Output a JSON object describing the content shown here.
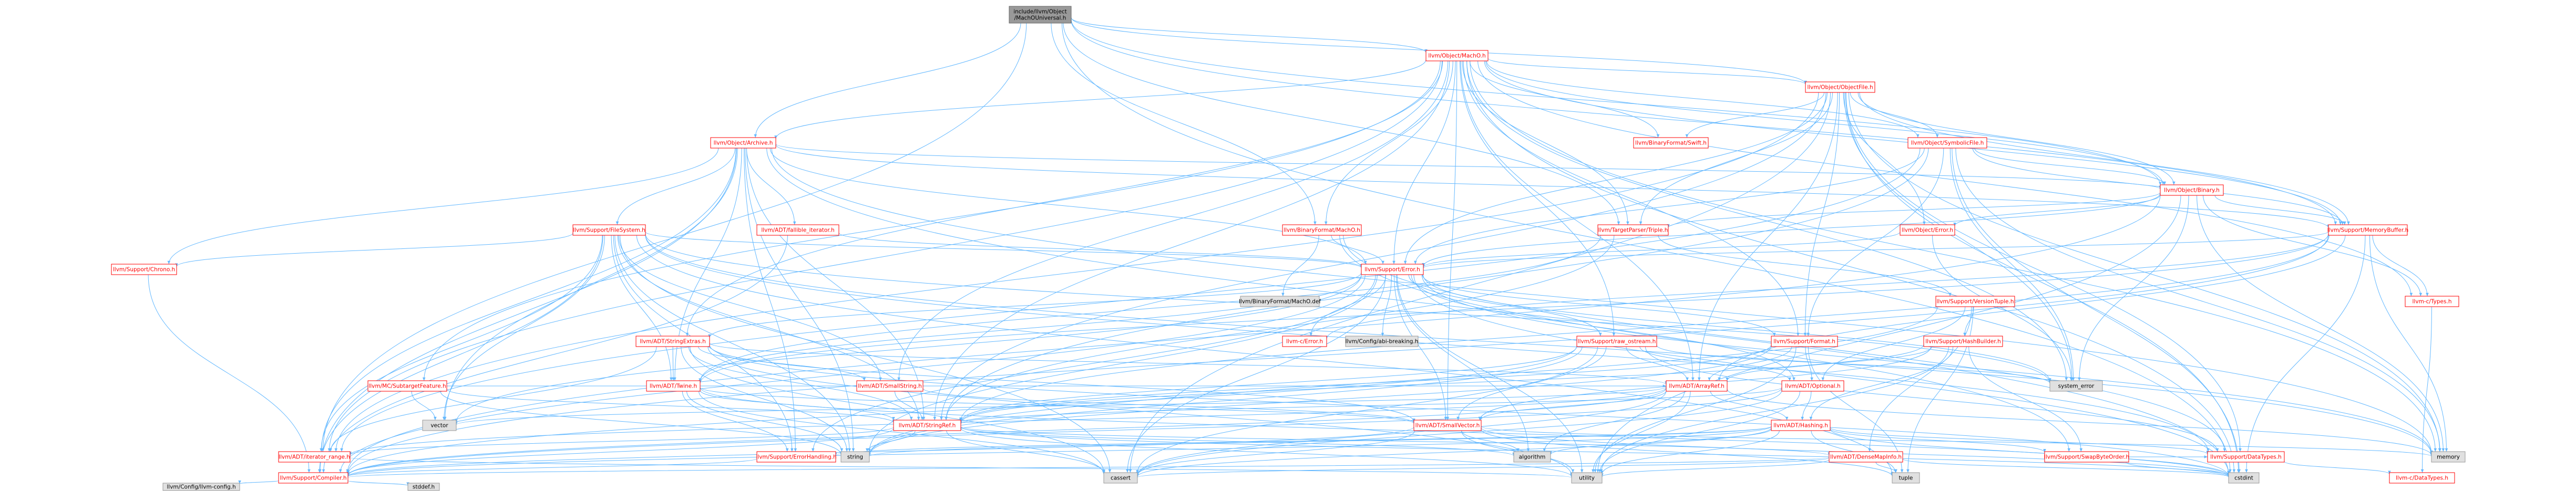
{
  "title": "include/llvm/Object/MachOUniversal.h",
  "colors": {
    "edge": "#63b8ff",
    "root_fill": "#999999",
    "linked_fill": "#ffffff",
    "linked_border": "#ff0000",
    "leaf_fill": "#e0e0e0",
    "leaf_border": "#999999",
    "text": "#000000",
    "red_text": "#ff0000"
  },
  "nodes": [
    {
      "id": "root",
      "kind": "root",
      "lines": [
        "include/llvm/Object",
        "/MachOUniversal.h"
      ]
    },
    {
      "id": "machO",
      "kind": "linked",
      "lines": [
        "llvm/Object/MachO.h"
      ]
    },
    {
      "id": "objectFile",
      "kind": "linked",
      "lines": [
        "llvm/Object/ObjectFile.h"
      ]
    },
    {
      "id": "archive",
      "kind": "linked",
      "lines": [
        "llvm/Object/Archive.h"
      ]
    },
    {
      "id": "swiftBF",
      "kind": "linked",
      "lines": [
        "llvm/BinaryFormat/Swift.h"
      ]
    },
    {
      "id": "symbolicFile",
      "kind": "linked",
      "lines": [
        "llvm/Object/SymbolicFile.h"
      ]
    },
    {
      "id": "binary",
      "kind": "linked",
      "lines": [
        "llvm/Object/Binary.h"
      ]
    },
    {
      "id": "fileSystem",
      "kind": "linked",
      "lines": [
        "llvm/Support/FileSystem.h"
      ]
    },
    {
      "id": "fallible",
      "kind": "linked",
      "lines": [
        "llvm/ADT/fallible_iterator.h"
      ]
    },
    {
      "id": "binMachO",
      "kind": "linked",
      "lines": [
        "llvm/BinaryFormat/MachO.h"
      ]
    },
    {
      "id": "triple",
      "kind": "linked",
      "lines": [
        "llvm/TargetParser/Triple.h"
      ]
    },
    {
      "id": "objError",
      "kind": "linked",
      "lines": [
        "llvm/Object/Error.h"
      ]
    },
    {
      "id": "memBuffer",
      "kind": "linked",
      "lines": [
        "llvm/Support/MemoryBuffer.h"
      ]
    },
    {
      "id": "chrono",
      "kind": "linked",
      "lines": [
        "llvm/Support/Chrono.h"
      ]
    },
    {
      "id": "supError",
      "kind": "linked",
      "lines": [
        "llvm/Support/Error.h"
      ]
    },
    {
      "id": "machoDef",
      "kind": "leaf",
      "lines": [
        "llvm/BinaryFormat/MachO.def"
      ]
    },
    {
      "id": "versionTuple",
      "kind": "linked",
      "lines": [
        "llvm/Support/VersionTuple.h"
      ]
    },
    {
      "id": "ctypes",
      "kind": "linked",
      "lines": [
        "llvm-c/Types.h"
      ]
    },
    {
      "id": "cError",
      "kind": "linked",
      "lines": [
        "llvm-c/Error.h"
      ]
    },
    {
      "id": "abiBreaking",
      "kind": "leaf",
      "lines": [
        "llvm/Config/abi-breaking.h"
      ]
    },
    {
      "id": "stringExtras",
      "kind": "linked",
      "lines": [
        "llvm/ADT/StringExtras.h"
      ]
    },
    {
      "id": "rawOstream",
      "kind": "linked",
      "lines": [
        "llvm/Support/raw_ostream.h"
      ]
    },
    {
      "id": "format",
      "kind": "linked",
      "lines": [
        "llvm/Support/Format.h"
      ]
    },
    {
      "id": "hashBuilder",
      "kind": "linked",
      "lines": [
        "llvm/Support/HashBuilder.h"
      ]
    },
    {
      "id": "subtarget",
      "kind": "linked",
      "lines": [
        "llvm/MC/SubtargetFeature.h"
      ]
    },
    {
      "id": "twine",
      "kind": "linked",
      "lines": [
        "llvm/ADT/Twine.h"
      ]
    },
    {
      "id": "smallString",
      "kind": "linked",
      "lines": [
        "llvm/ADT/SmallString.h"
      ]
    },
    {
      "id": "arrayRef",
      "kind": "linked",
      "lines": [
        "llvm/ADT/ArrayRef.h"
      ]
    },
    {
      "id": "optional",
      "kind": "linked",
      "lines": [
        "llvm/ADT/Optional.h"
      ]
    },
    {
      "id": "systemError",
      "kind": "leaf",
      "lines": [
        "system_error"
      ]
    },
    {
      "id": "vector",
      "kind": "leaf",
      "lines": [
        "vector"
      ]
    },
    {
      "id": "stringRef",
      "kind": "linked",
      "lines": [
        "llvm/ADT/StringRef.h"
      ]
    },
    {
      "id": "smallVector",
      "kind": "linked",
      "lines": [
        "llvm/ADT/SmallVector.h"
      ]
    },
    {
      "id": "hashing",
      "kind": "linked",
      "lines": [
        "llvm/ADT/Hashing.h"
      ]
    },
    {
      "id": "iterRange",
      "kind": "linked",
      "lines": [
        "llvm/ADT/iterator_range.h"
      ]
    },
    {
      "id": "errHandling",
      "kind": "linked",
      "lines": [
        "llvm/Support/ErrorHandling.h"
      ]
    },
    {
      "id": "string",
      "kind": "leaf",
      "lines": [
        "string"
      ]
    },
    {
      "id": "algorithm",
      "kind": "leaf",
      "lines": [
        "algorithm"
      ]
    },
    {
      "id": "denseMapInfo",
      "kind": "linked",
      "lines": [
        "llvm/ADT/DenseMapInfo.h"
      ]
    },
    {
      "id": "swapByte",
      "kind": "linked",
      "lines": [
        "llvm/Support/SwapByteOrder.h"
      ]
    },
    {
      "id": "dataTypesSup",
      "kind": "linked",
      "lines": [
        "llvm/Support/DataTypes.h"
      ]
    },
    {
      "id": "memory",
      "kind": "leaf",
      "lines": [
        "memory"
      ]
    },
    {
      "id": "compiler",
      "kind": "linked",
      "lines": [
        "llvm/Support/Compiler.h"
      ]
    },
    {
      "id": "cassert",
      "kind": "leaf",
      "lines": [
        "cassert"
      ]
    },
    {
      "id": "utility",
      "kind": "leaf",
      "lines": [
        "utility"
      ]
    },
    {
      "id": "tuple",
      "kind": "leaf",
      "lines": [
        "tuple"
      ]
    },
    {
      "id": "cstdint",
      "kind": "leaf",
      "lines": [
        "cstdint"
      ]
    },
    {
      "id": "cDataTypes",
      "kind": "linked",
      "lines": [
        "llvm-c/DataTypes.h"
      ]
    },
    {
      "id": "llvmConfig",
      "kind": "leaf",
      "lines": [
        "llvm/Config/llvm-config.h"
      ]
    },
    {
      "id": "stddef",
      "kind": "leaf",
      "lines": [
        "stddef.h"
      ]
    }
  ],
  "edges": [
    [
      "root",
      "machO"
    ],
    [
      "root",
      "objectFile"
    ],
    [
      "root",
      "archive"
    ],
    [
      "root",
      "binary"
    ],
    [
      "root",
      "triple"
    ],
    [
      "root",
      "binMachO"
    ],
    [
      "root",
      "iterRange"
    ],
    [
      "root",
      "memBuffer"
    ],
    [
      "root",
      "cstdint"
    ],
    [
      "machO",
      "objectFile"
    ],
    [
      "machO",
      "archive"
    ],
    [
      "machO",
      "swiftBF"
    ],
    [
      "machO",
      "symbolicFile"
    ],
    [
      "machO",
      "binary"
    ],
    [
      "machO",
      "binMachO"
    ],
    [
      "machO",
      "triple"
    ],
    [
      "machO",
      "supError"
    ],
    [
      "machO",
      "arrayRef"
    ],
    [
      "machO",
      "smallString"
    ],
    [
      "machO",
      "smallVector"
    ],
    [
      "machO",
      "stringExtras"
    ],
    [
      "machO",
      "stringRef"
    ],
    [
      "machO",
      "subtarget"
    ],
    [
      "machO",
      "format"
    ],
    [
      "machO",
      "memBuffer"
    ],
    [
      "machO",
      "rawOstream"
    ],
    [
      "machO",
      "systemError"
    ],
    [
      "machO",
      "memory"
    ],
    [
      "machO",
      "cstdint"
    ],
    [
      "machO",
      "ctypes"
    ],
    [
      "machO",
      "iterRange"
    ],
    [
      "objectFile",
      "symbolicFile"
    ],
    [
      "objectFile",
      "binary"
    ],
    [
      "objectFile",
      "objError"
    ],
    [
      "objectFile",
      "memBuffer"
    ],
    [
      "objectFile",
      "triple"
    ],
    [
      "objectFile",
      "supError"
    ],
    [
      "objectFile",
      "swiftBF"
    ],
    [
      "objectFile",
      "arrayRef"
    ],
    [
      "objectFile",
      "stringRef"
    ],
    [
      "objectFile",
      "iterRange"
    ],
    [
      "objectFile",
      "dataTypesSup"
    ],
    [
      "objectFile",
      "memory"
    ],
    [
      "objectFile",
      "cassert"
    ],
    [
      "objectFile",
      "cstdint"
    ],
    [
      "objectFile",
      "systemError"
    ],
    [
      "objectFile",
      "format"
    ],
    [
      "archive",
      "fileSystem"
    ],
    [
      "archive",
      "fallible"
    ],
    [
      "archive",
      "binary"
    ],
    [
      "archive",
      "chrono"
    ],
    [
      "archive",
      "supError"
    ],
    [
      "archive",
      "memBuffer"
    ],
    [
      "archive",
      "iterRange"
    ],
    [
      "archive",
      "stringRef"
    ],
    [
      "archive",
      "errHandling"
    ],
    [
      "archive",
      "compiler"
    ],
    [
      "archive",
      "vector"
    ],
    [
      "archive",
      "memory"
    ],
    [
      "archive",
      "string"
    ],
    [
      "archive",
      "cstdint"
    ],
    [
      "archive",
      "twine"
    ],
    [
      "symbolicFile",
      "binary"
    ],
    [
      "symbolicFile",
      "supError"
    ],
    [
      "symbolicFile",
      "memBuffer"
    ],
    [
      "symbolicFile",
      "format"
    ],
    [
      "symbolicFile",
      "iterRange"
    ],
    [
      "symbolicFile",
      "stringRef"
    ],
    [
      "symbolicFile",
      "cstdint"
    ],
    [
      "symbolicFile",
      "systemError"
    ],
    [
      "symbolicFile",
      "memory"
    ],
    [
      "binary",
      "ctypes"
    ],
    [
      "binary",
      "objError"
    ],
    [
      "binary",
      "supError"
    ],
    [
      "binary",
      "memBuffer"
    ],
    [
      "binary",
      "triple"
    ],
    [
      "binary",
      "compiler"
    ],
    [
      "binary",
      "memory"
    ],
    [
      "binary",
      "utility"
    ],
    [
      "binary",
      "systemError"
    ],
    [
      "fileSystem",
      "chrono"
    ],
    [
      "fileSystem",
      "supError"
    ],
    [
      "fileSystem",
      "errHandling"
    ],
    [
      "fileSystem",
      "smallString"
    ],
    [
      "fileSystem",
      "stringRef"
    ],
    [
      "fileSystem",
      "twine"
    ],
    [
      "fileSystem",
      "dataTypesSup"
    ],
    [
      "fileSystem",
      "memory"
    ],
    [
      "fileSystem",
      "string"
    ],
    [
      "fileSystem",
      "vector"
    ],
    [
      "fileSystem",
      "cassert"
    ],
    [
      "fileSystem",
      "systemError"
    ],
    [
      "fileSystem",
      "tuple"
    ],
    [
      "fileSystem",
      "iterRange"
    ],
    [
      "fileSystem",
      "compiler"
    ],
    [
      "fallible",
      "supError"
    ],
    [
      "fallible",
      "compiler"
    ],
    [
      "binMachO",
      "machoDef"
    ],
    [
      "binMachO",
      "supError"
    ],
    [
      "binMachO",
      "dataTypesSup"
    ],
    [
      "binMachO",
      "swapByte"
    ],
    [
      "triple",
      "twine"
    ],
    [
      "triple",
      "versionTuple"
    ],
    [
      "triple",
      "stringRef"
    ],
    [
      "objError",
      "supError"
    ],
    [
      "objError",
      "systemError"
    ],
    [
      "memBuffer",
      "ctypes"
    ],
    [
      "memBuffer",
      "supError"
    ],
    [
      "memBuffer",
      "arrayRef"
    ],
    [
      "memBuffer",
      "twine"
    ],
    [
      "memBuffer",
      "stringRef"
    ],
    [
      "memBuffer",
      "cstdint"
    ],
    [
      "memBuffer",
      "memory"
    ],
    [
      "memBuffer",
      "compiler"
    ],
    [
      "memBuffer",
      "cError"
    ],
    [
      "chrono",
      "compiler"
    ],
    [
      "supError",
      "cError"
    ],
    [
      "supError",
      "abiBreaking"
    ],
    [
      "supError",
      "stringExtras"
    ],
    [
      "supError",
      "twine"
    ],
    [
      "supError",
      "compiler"
    ],
    [
      "supError",
      "errHandling"
    ],
    [
      "supError",
      "format"
    ],
    [
      "supError",
      "rawOstream"
    ],
    [
      "supError",
      "algorithm"
    ],
    [
      "supError",
      "cassert"
    ],
    [
      "supError",
      "cstdint"
    ],
    [
      "supError",
      "memory"
    ],
    [
      "supError",
      "string"
    ],
    [
      "supError",
      "systemError"
    ],
    [
      "supError",
      "utility"
    ],
    [
      "supError",
      "vector"
    ],
    [
      "supError",
      "smallVector"
    ],
    [
      "supError",
      "optional"
    ],
    [
      "versionTuple",
      "hashBuilder"
    ],
    [
      "versionTuple",
      "denseMapInfo"
    ],
    [
      "versionTuple",
      "string"
    ],
    [
      "versionTuple",
      "tuple"
    ],
    [
      "versionTuple",
      "optional"
    ],
    [
      "ctypes",
      "cDataTypes"
    ],
    [
      "stringExtras",
      "arrayRef"
    ],
    [
      "stringExtras",
      "smallString"
    ],
    [
      "stringExtras",
      "stringRef"
    ],
    [
      "stringExtras",
      "twine"
    ],
    [
      "stringExtras",
      "cassert"
    ],
    [
      "stringExtras",
      "cstdint"
    ],
    [
      "stringExtras",
      "string"
    ],
    [
      "stringExtras",
      "utility"
    ],
    [
      "stringExtras",
      "iterRange"
    ],
    [
      "stringExtras",
      "smallVector"
    ],
    [
      "rawOstream",
      "stringRef"
    ],
    [
      "rawOstream",
      "compiler"
    ],
    [
      "rawOstream",
      "dataTypesSup"
    ],
    [
      "rawOstream",
      "cassert"
    ],
    [
      "rawOstream",
      "string"
    ],
    [
      "rawOstream",
      "systemError"
    ],
    [
      "rawOstream",
      "optional"
    ],
    [
      "rawOstream",
      "arrayRef"
    ],
    [
      "rawOstream",
      "smallVector"
    ],
    [
      "format",
      "arrayRef"
    ],
    [
      "format",
      "stringRef"
    ],
    [
      "format",
      "string"
    ],
    [
      "format",
      "tuple"
    ],
    [
      "format",
      "utility"
    ],
    [
      "format",
      "optional"
    ],
    [
      "hashBuilder",
      "arrayRef"
    ],
    [
      "hashBuilder",
      "hashing"
    ],
    [
      "hashBuilder",
      "stringRef"
    ],
    [
      "hashBuilder",
      "swapByte"
    ],
    [
      "hashBuilder",
      "smallVector"
    ],
    [
      "hashBuilder",
      "utility"
    ],
    [
      "subtarget",
      "stringRef"
    ],
    [
      "subtarget",
      "string"
    ],
    [
      "subtarget",
      "vector"
    ],
    [
      "subtarget",
      "arrayRef"
    ],
    [
      "twine",
      "smallVector"
    ],
    [
      "twine",
      "stringRef"
    ],
    [
      "twine",
      "errHandling"
    ],
    [
      "twine",
      "cassert"
    ],
    [
      "twine",
      "cstdint"
    ],
    [
      "twine",
      "string"
    ],
    [
      "smallString",
      "smallVector"
    ],
    [
      "smallString",
      "stringRef"
    ],
    [
      "arrayRef",
      "hashing"
    ],
    [
      "arrayRef",
      "smallVector"
    ],
    [
      "arrayRef",
      "iterRange"
    ],
    [
      "arrayRef",
      "compiler"
    ],
    [
      "arrayRef",
      "algorithm"
    ],
    [
      "arrayRef",
      "cassert"
    ],
    [
      "arrayRef",
      "memory"
    ],
    [
      "arrayRef",
      "utility"
    ],
    [
      "arrayRef",
      "vector"
    ],
    [
      "optional",
      "hashing"
    ],
    [
      "optional",
      "compiler"
    ],
    [
      "optional",
      "cassert"
    ],
    [
      "optional",
      "utility"
    ],
    [
      "optional",
      "stringRef"
    ],
    [
      "stringRef",
      "denseMapInfo"
    ],
    [
      "stringRef",
      "iterRange"
    ],
    [
      "stringRef",
      "compiler"
    ],
    [
      "stringRef",
      "algorithm"
    ],
    [
      "stringRef",
      "cassert"
    ],
    [
      "stringRef",
      "string"
    ],
    [
      "stringRef",
      "utility"
    ],
    [
      "stringRef",
      "cstdint"
    ],
    [
      "smallVector",
      "compiler"
    ],
    [
      "smallVector",
      "algorithm"
    ],
    [
      "smallVector",
      "cassert"
    ],
    [
      "smallVector",
      "cstdint"
    ],
    [
      "smallVector",
      "memory"
    ],
    [
      "smallVector",
      "utility"
    ],
    [
      "smallVector",
      "tuple"
    ],
    [
      "hashing",
      "errHandling"
    ],
    [
      "hashing",
      "swapByte"
    ],
    [
      "hashing",
      "algorithm"
    ],
    [
      "hashing",
      "cassert"
    ],
    [
      "hashing",
      "cstdint"
    ],
    [
      "hashing",
      "string"
    ],
    [
      "hashing",
      "tuple"
    ],
    [
      "hashing",
      "utility"
    ],
    [
      "hashing",
      "dataTypesSup"
    ],
    [
      "hashing",
      "compiler"
    ],
    [
      "iterRange",
      "utility"
    ],
    [
      "errHandling",
      "compiler"
    ],
    [
      "denseMapInfo",
      "cassert"
    ],
    [
      "denseMapInfo",
      "cstdint"
    ],
    [
      "denseMapInfo",
      "tuple"
    ],
    [
      "denseMapInfo",
      "utility"
    ],
    [
      "denseMapInfo",
      "compiler"
    ],
    [
      "swapByte",
      "dataTypesSup"
    ],
    [
      "swapByte",
      "cstdint"
    ],
    [
      "dataTypesSup",
      "cDataTypes"
    ],
    [
      "compiler",
      "llvmConfig"
    ],
    [
      "compiler",
      "stddef"
    ]
  ]
}
